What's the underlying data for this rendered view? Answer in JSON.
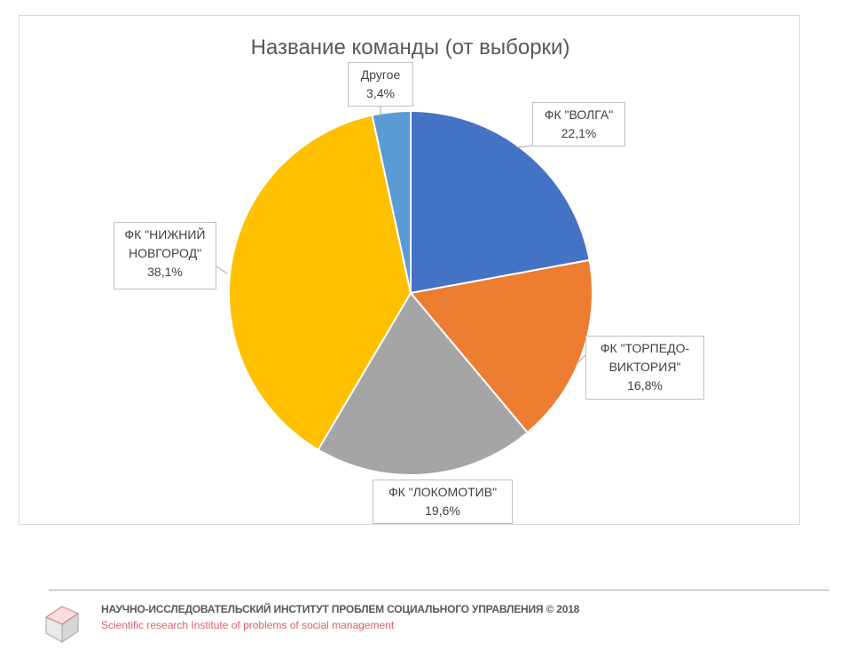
{
  "chart_data": {
    "type": "pie",
    "title": "Название команды (от выборки)",
    "slices": [
      {
        "label": "ФК \"ВОЛГА\"",
        "value": 22.1,
        "value_label": "22,1%",
        "color": "#4472C4"
      },
      {
        "label": "ФК \"ТОРПЕДО-ВИКТОРИЯ\"",
        "value": 16.8,
        "value_label": "16,8%",
        "color": "#ED7D31"
      },
      {
        "label": "ФК \"ЛОКОМОТИВ\"",
        "value": 19.6,
        "value_label": "19,6%",
        "color": "#A5A5A5"
      },
      {
        "label": "ФК \"НИЖНИЙ НОВГОРОД\"",
        "value": 38.1,
        "value_label": "38,1%",
        "color": "#FFC000"
      },
      {
        "label": "Другое",
        "value": 3.4,
        "value_label": "3,4%",
        "color": "#5B9BD5"
      }
    ],
    "start_angle_deg": 0,
    "direction": "clockwise",
    "legend": "none",
    "data_labels": "callout"
  },
  "footer": {
    "title": "НАУЧНО-ИССЛЕДОВАТЕЛЬСКИЙ ИНСТИТУТ ПРОБЛЕМ СОЦИАЛЬНОГО УПРАВЛЕНИЯ   © 2018",
    "subtitle": "Scientific research Institute of problems of social management"
  }
}
